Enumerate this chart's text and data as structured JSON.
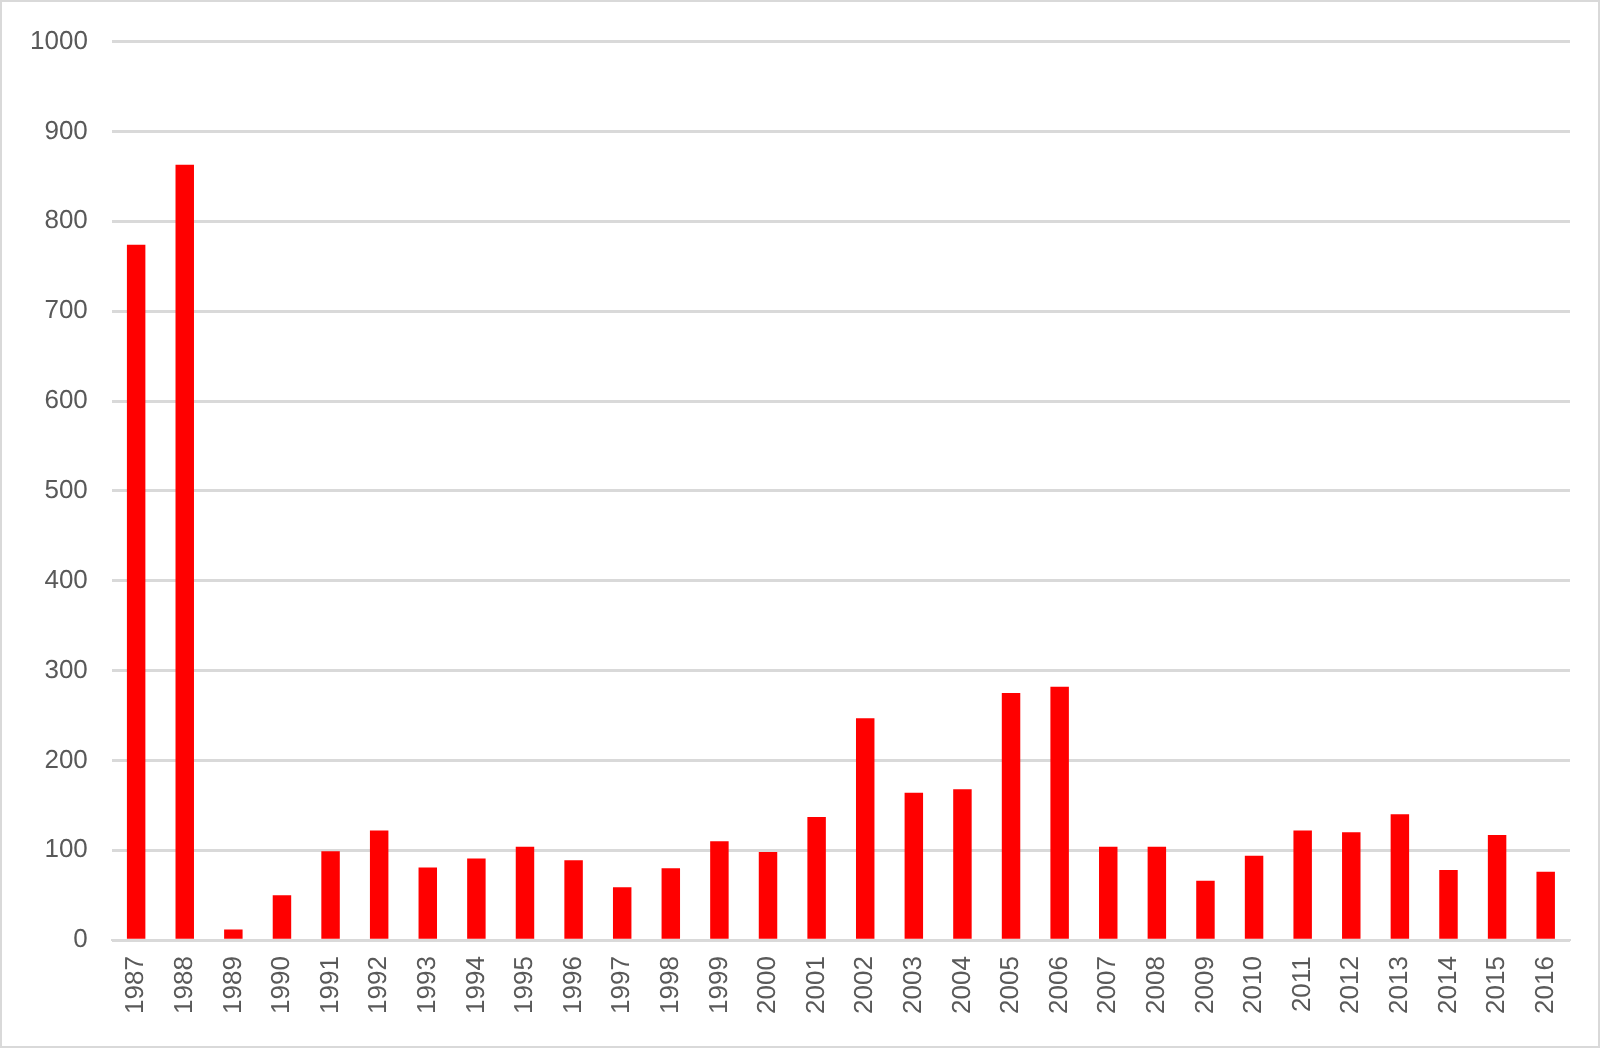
{
  "chart_data": {
    "type": "bar",
    "categories": [
      "1987",
      "1988",
      "1989",
      "1990",
      "1991",
      "1992",
      "1993",
      "1994",
      "1995",
      "1996",
      "1997",
      "1998",
      "1999",
      "2000",
      "2001",
      "2002",
      "2003",
      "2004",
      "2005",
      "2006",
      "2007",
      "2008",
      "2009",
      "2010",
      "2011",
      "2012",
      "2013",
      "2014",
      "2015",
      "2016"
    ],
    "values": [
      774,
      863,
      12,
      50,
      99,
      122,
      81,
      91,
      104,
      89,
      59,
      80,
      110,
      98,
      137,
      247,
      164,
      168,
      275,
      282,
      104,
      104,
      66,
      94,
      122,
      120,
      140,
      78,
      117,
      76
    ],
    "color": "#ff0000",
    "ylim": [
      0,
      1000
    ],
    "yticks": [
      0,
      100,
      200,
      300,
      400,
      500,
      600,
      700,
      800,
      900,
      1000
    ],
    "grid": "y"
  }
}
